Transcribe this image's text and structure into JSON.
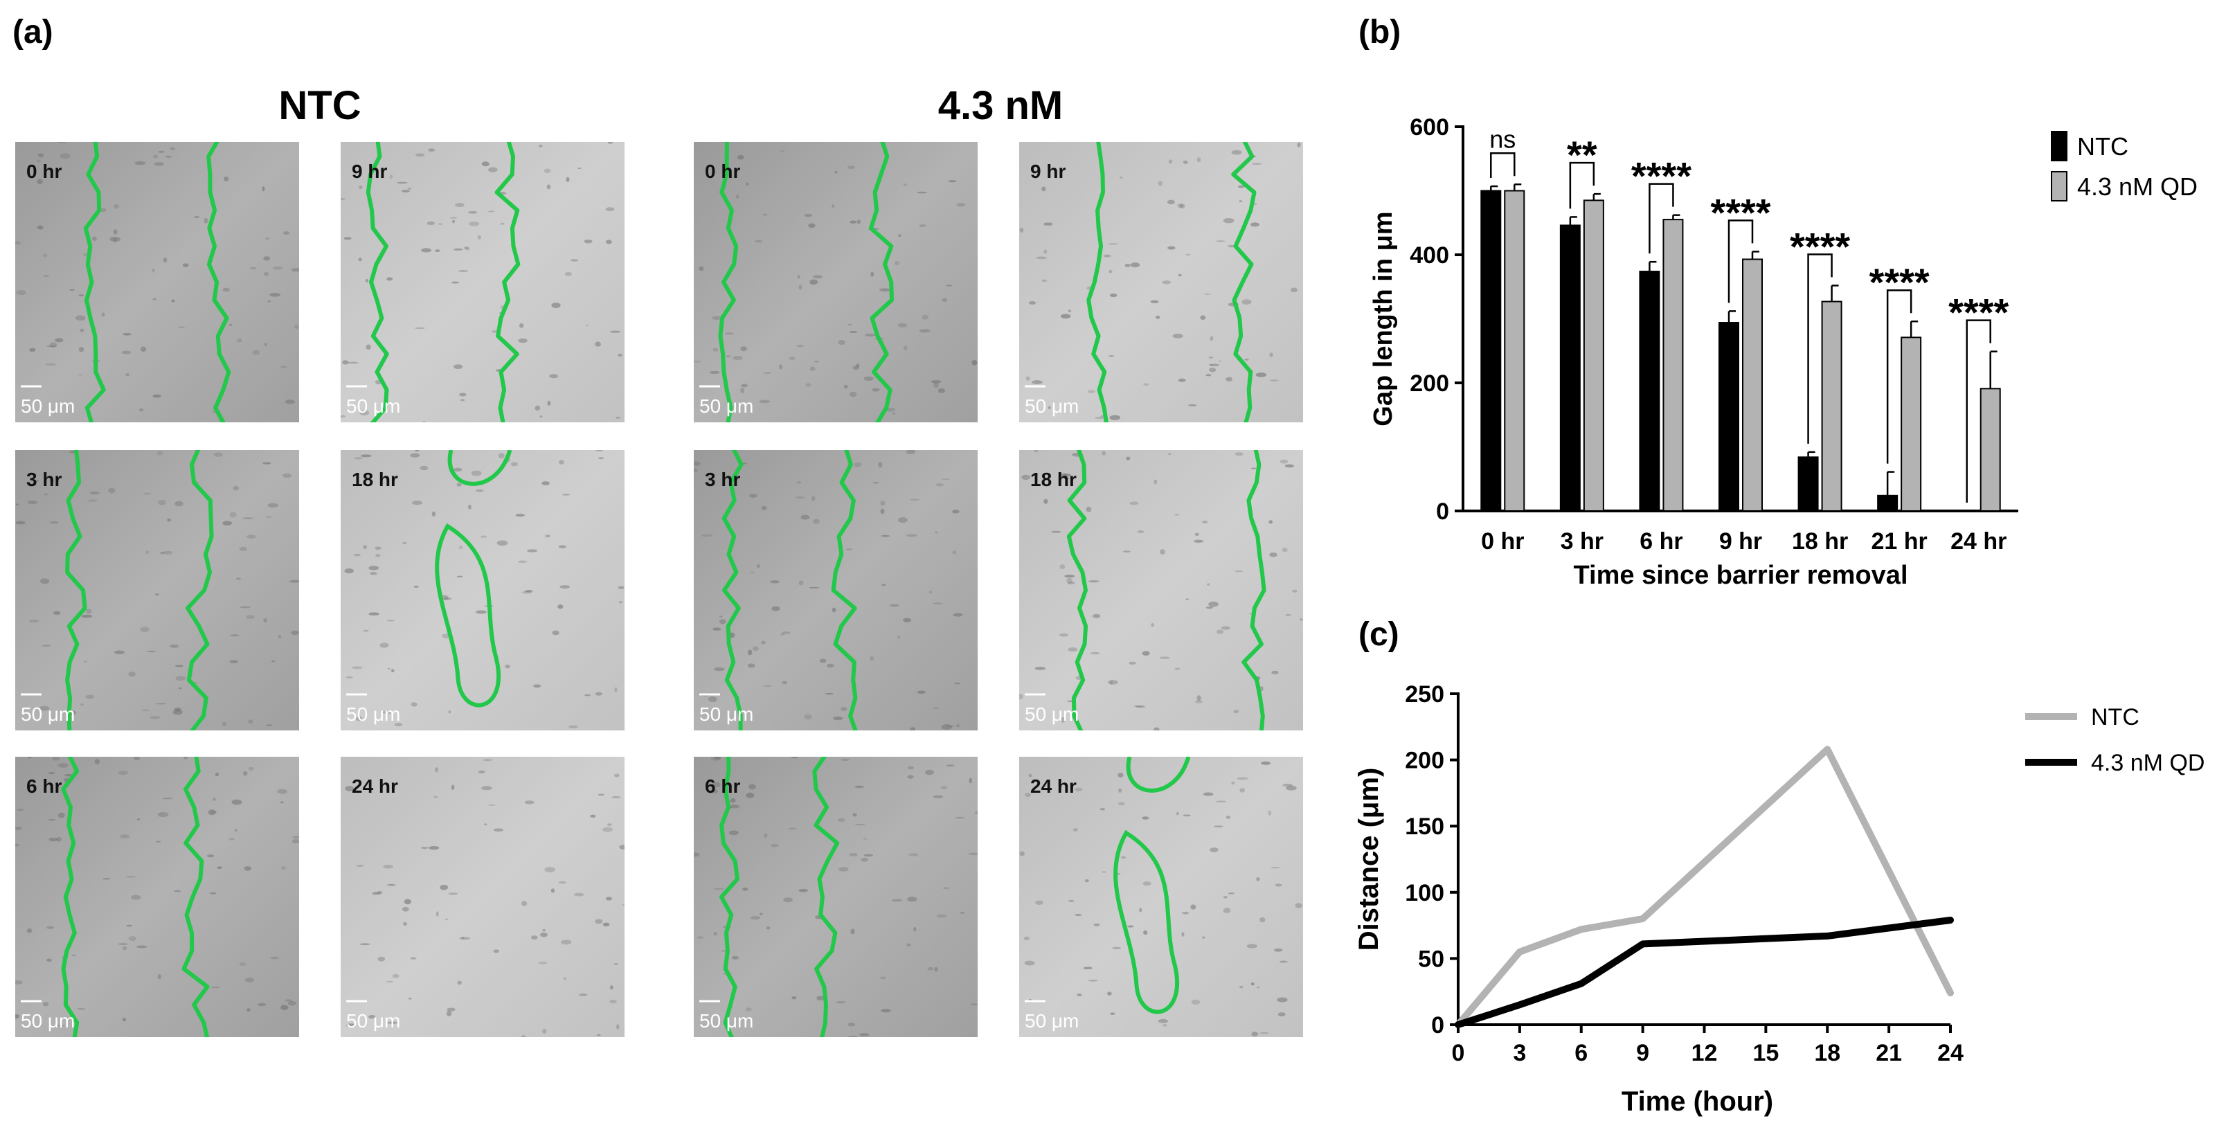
{
  "panels": {
    "a": {
      "label": "(a)",
      "columns": [
        {
          "title": "NTC",
          "tiles": [
            {
              "time": "0 hr",
              "scale": "50 μm",
              "style": "gap"
            },
            {
              "time": "9 hr",
              "scale": "50 μm",
              "style": "gap"
            },
            {
              "time": "3 hr",
              "scale": "50 μm",
              "style": "gap"
            },
            {
              "time": "18 hr",
              "scale": "50 μm",
              "style": "loop"
            },
            {
              "time": "6 hr",
              "scale": "50 μm",
              "style": "gap"
            },
            {
              "time": "24 hr",
              "scale": "50 μm",
              "style": "closed"
            }
          ]
        },
        {
          "title": "4.3 nM",
          "tiles": [
            {
              "time": "0 hr",
              "scale": "50 μm",
              "style": "gap"
            },
            {
              "time": "9 hr",
              "scale": "50 μm",
              "style": "gap"
            },
            {
              "time": "3 hr",
              "scale": "50 μm",
              "style": "gap"
            },
            {
              "time": "18 hr",
              "scale": "50 μm",
              "style": "gap"
            },
            {
              "time": "6 hr",
              "scale": "50 μm",
              "style": "gap"
            },
            {
              "time": "24 hr",
              "scale": "50 μm",
              "style": "loop"
            }
          ]
        }
      ]
    },
    "b": {
      "label": "(b)"
    },
    "c": {
      "label": "(c)"
    }
  },
  "colors": {
    "trace": "#22c84a",
    "bar_ntc": "#000000",
    "bar_qd": "#b3b3b3",
    "line_ntc": "#b3b3b3",
    "line_qd": "#000000"
  },
  "chart_data": [
    {
      "type": "bar",
      "panel": "b",
      "categories": [
        "0 hr",
        "3 hr",
        "6 hr",
        "9 hr",
        "18 hr",
        "21 hr",
        "24 hr"
      ],
      "series": [
        {
          "name": "NTC",
          "values": [
            500,
            446,
            374,
            294,
            84,
            24,
            0
          ],
          "errors": [
            7,
            13,
            15,
            18,
            8,
            37,
            0
          ]
        },
        {
          "name": "4.3 nM QD",
          "values": [
            500,
            485,
            455,
            393,
            327,
            271,
            191
          ],
          "errors": [
            10,
            10,
            7,
            12,
            25,
            25,
            58
          ]
        }
      ],
      "significance": [
        "ns",
        "**",
        "****",
        "****",
        "****",
        "****",
        "****"
      ],
      "xlabel": "Time since barrier removal",
      "ylabel": "Gap length in μm",
      "ylim": [
        0,
        600
      ],
      "yticks": [
        0,
        200,
        400,
        600
      ],
      "legend_position": "right"
    },
    {
      "type": "line",
      "panel": "c",
      "x": [
        0,
        3,
        6,
        9,
        18,
        24
      ],
      "series": [
        {
          "name": "NTC",
          "values": [
            0,
            55,
            72,
            80,
            208,
            24
          ]
        },
        {
          "name": "4.3 nM QD",
          "values": [
            0,
            15,
            31,
            61,
            67,
            79
          ]
        }
      ],
      "xticks": [
        0,
        3,
        6,
        9,
        12,
        15,
        18,
        21,
        24
      ],
      "yticks": [
        0,
        50,
        100,
        150,
        200,
        250
      ],
      "xlim": [
        0,
        24
      ],
      "ylim": [
        0,
        250
      ],
      "xlabel": "Time (hour)",
      "ylabel": "Distance (μm)",
      "legend_position": "right"
    }
  ]
}
